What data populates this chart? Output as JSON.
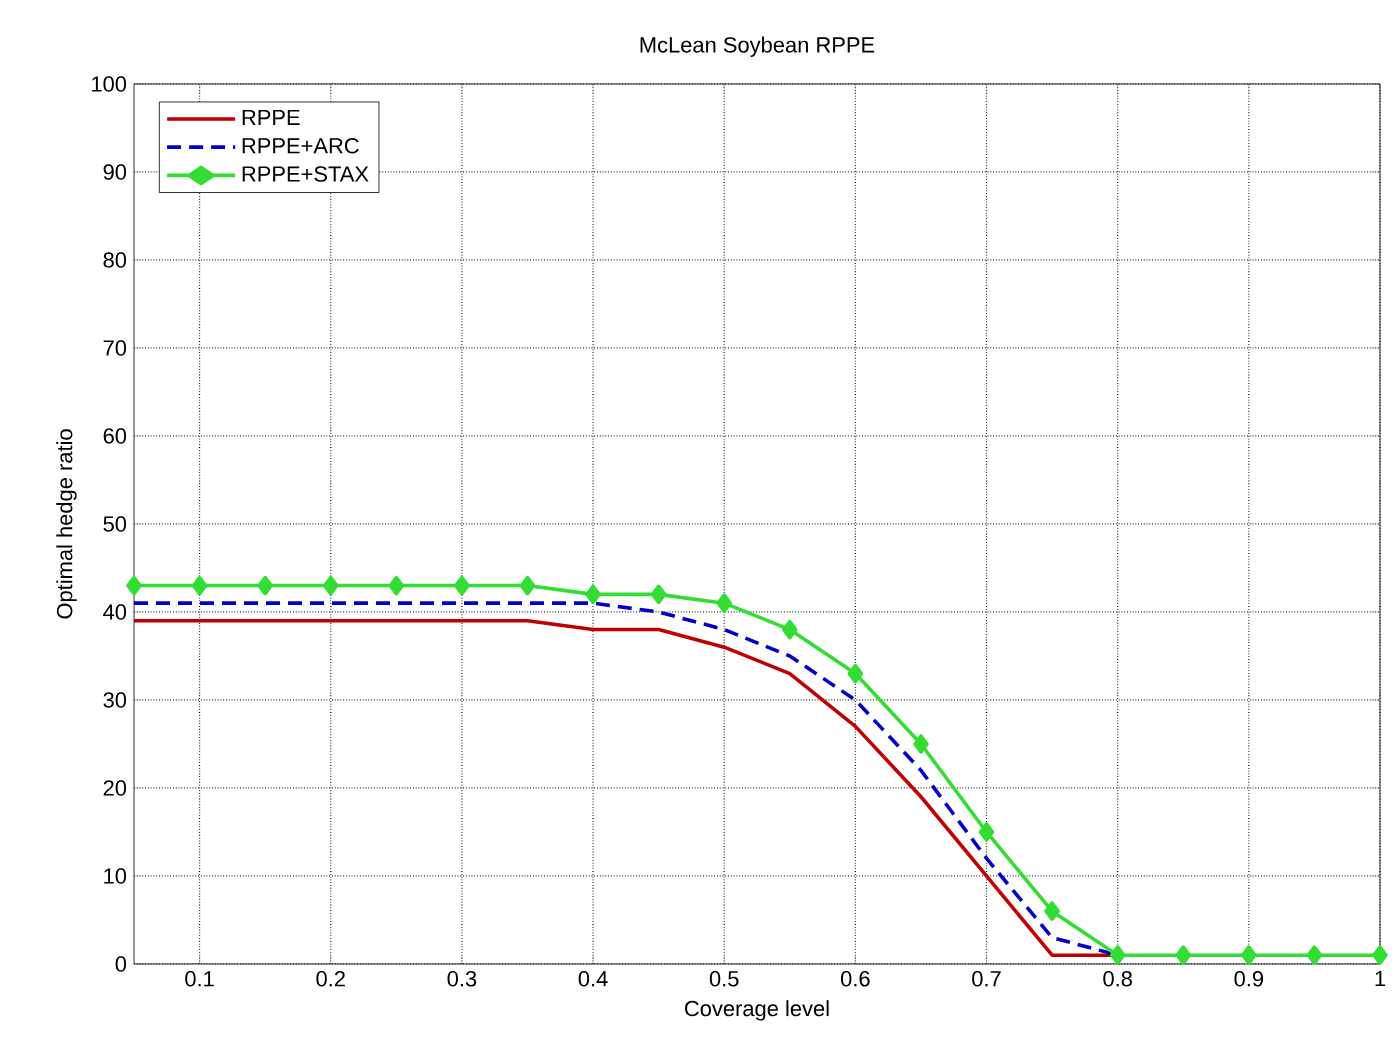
{
  "chart_data": {
    "type": "line",
    "title": "McLean Soybean  RPPE",
    "xlabel": "Coverage level",
    "ylabel": "Optimal hedge ratio",
    "x": [
      0.05,
      0.1,
      0.15,
      0.2,
      0.25,
      0.3,
      0.35,
      0.4,
      0.45,
      0.5,
      0.55,
      0.6,
      0.65,
      0.7,
      0.75,
      0.8,
      0.85,
      0.9,
      0.95,
      1.0
    ],
    "series": [
      {
        "name": "RPPE",
        "color": "#c00000",
        "line_style": "solid",
        "marker": "none",
        "values": [
          39,
          39,
          39,
          39,
          39,
          39,
          39,
          38,
          38,
          36,
          33,
          27,
          19,
          10,
          1,
          1,
          null,
          null,
          null,
          null
        ]
      },
      {
        "name": "RPPE+ARC",
        "color": "#0000c8",
        "line_style": "dashed",
        "marker": "none",
        "values": [
          41,
          41,
          41,
          41,
          41,
          41,
          41,
          41,
          40,
          38,
          35,
          30,
          22,
          12,
          3,
          1,
          null,
          null,
          null,
          null
        ]
      },
      {
        "name": "RPPE+STAX",
        "color": "#33dd33",
        "line_style": "solid",
        "marker": "diamond",
        "values": [
          43,
          43,
          43,
          43,
          43,
          43,
          43,
          42,
          42,
          41,
          38,
          33,
          25,
          15,
          6,
          1,
          1,
          1,
          1,
          1
        ]
      }
    ],
    "xlim": [
      0.05,
      1
    ],
    "ylim": [
      0,
      100
    ],
    "xticks": [
      0.1,
      0.2,
      0.3,
      0.4,
      0.5,
      0.6,
      0.7,
      0.8,
      0.9,
      1
    ],
    "yticks": [
      0,
      10,
      20,
      30,
      40,
      50,
      60,
      70,
      80,
      90,
      100
    ],
    "grid": true,
    "legend": "top left"
  }
}
